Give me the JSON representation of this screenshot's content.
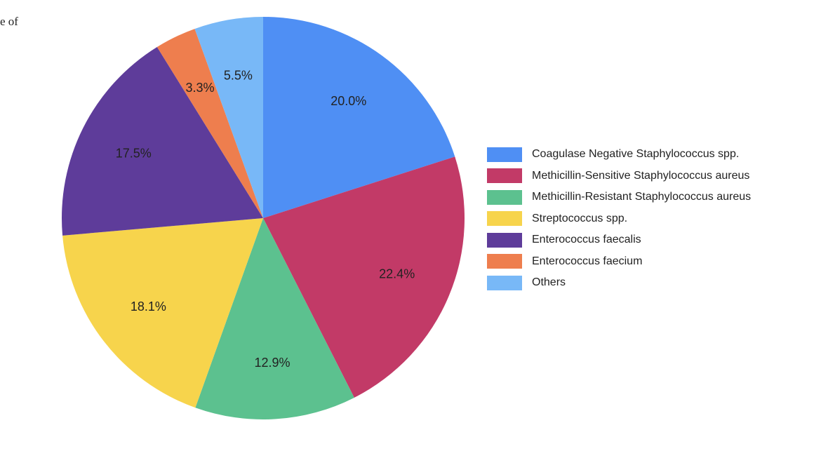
{
  "page": {
    "text_fragment": "e of"
  },
  "chart_data": {
    "type": "pie",
    "title": "",
    "start_angle_deg": 0,
    "direction": "clockwise",
    "legend_position": "right",
    "slices": [
      {
        "label": "Coagulase Negative Staphylococcus spp.",
        "value": 20.0,
        "display": "20.0%",
        "color": "#4f8ff4"
      },
      {
        "label": "Methicillin-Sensitive Staphylococcus aureus",
        "value": 22.4,
        "display": "22.4%",
        "color": "#c23a67"
      },
      {
        "label": "Methicillin-Resistant Staphylococcus aureus",
        "value": 12.9,
        "display": "12.9%",
        "color": "#5cc18f"
      },
      {
        "label": "Streptococcus spp.",
        "value": 18.1,
        "display": "18.1%",
        "color": "#f7d44c"
      },
      {
        "label": "Enterococcus faecalis",
        "value": 17.5,
        "display": "17.5%",
        "color": "#5e3c9a"
      },
      {
        "label": "Enterococcus faecium",
        "value": 3.3,
        "display": "3.3%",
        "color": "#ee7e4e"
      },
      {
        "label": "Others",
        "value": 5.5,
        "display": "5.5%",
        "color": "#78b8f7"
      }
    ]
  }
}
